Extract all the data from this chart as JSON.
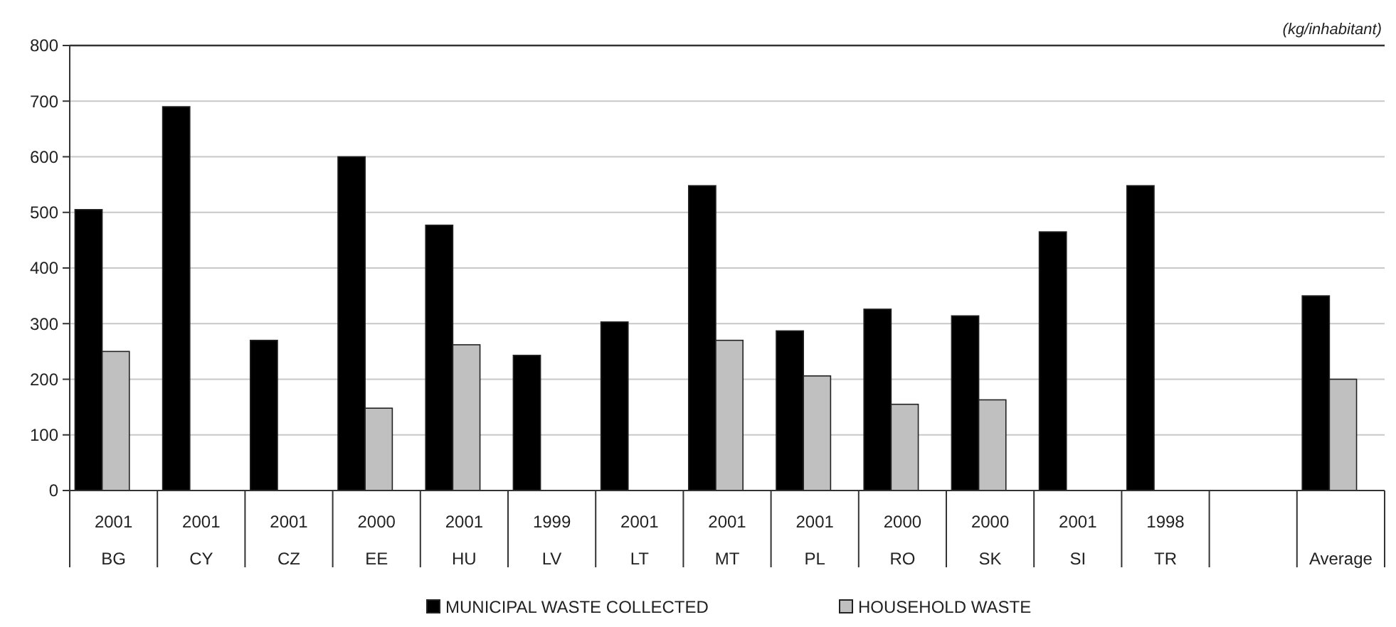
{
  "chart_data": {
    "type": "bar",
    "ylabel": "(kg/inhabitant)",
    "categories": [
      "2001\nBG",
      "2001\nCY",
      "2001\nCZ",
      "2000\nEE",
      "2001\nHU",
      "1999\nLV",
      "2001\nLT",
      "2001\nMT",
      "2001\nPL",
      "2000\nRO",
      "2000\nSK",
      "2001\nSI",
      "1998\nTR",
      null,
      "Average"
    ],
    "series": [
      {
        "name": "MUNICIPAL WASTE COLLECTED",
        "color": "#000000",
        "values": [
          505,
          690,
          270,
          600,
          477,
          243,
          303,
          548,
          287,
          326,
          314,
          465,
          548,
          null,
          350
        ]
      },
      {
        "name": "HOUSEHOLD WASTE",
        "color": "#c0c0c0",
        "values": [
          250,
          null,
          null,
          148,
          262,
          null,
          null,
          270,
          206,
          155,
          163,
          null,
          null,
          null,
          200
        ]
      }
    ],
    "ylim": [
      0,
      800
    ],
    "yticks": [
      0,
      100,
      200,
      300,
      400,
      500,
      600,
      700,
      800
    ],
    "grid": "y",
    "legend": "bottom"
  }
}
